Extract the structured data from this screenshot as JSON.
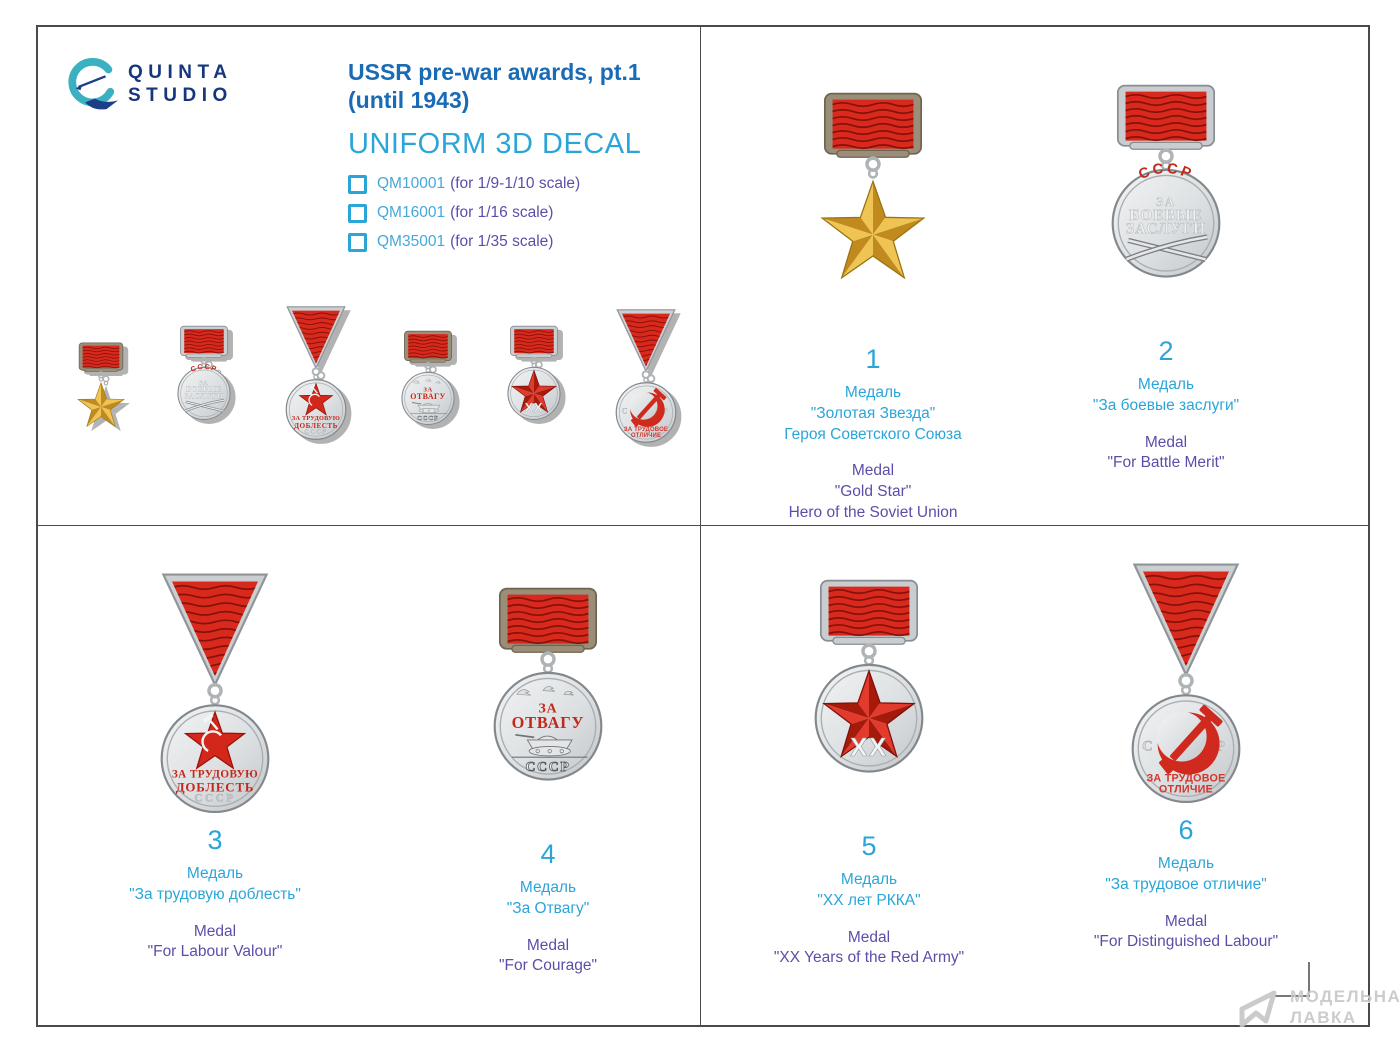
{
  "header": {
    "logo": {
      "brand_line1": "QUINTA",
      "brand_line2": "STUDIO"
    },
    "title_line1": "USSR pre-war awards, pt.1",
    "title_line2": "(until 1943)",
    "subtitle": "UNIFORM 3D DECAL",
    "variants": [
      {
        "code": "QM10001",
        "scale_note": "(for 1/9-1/10 scale)"
      },
      {
        "code": "QM16001",
        "scale_note": "(for 1/16 scale)"
      },
      {
        "code": "QM35001",
        "scale_note": "(for 1/35 scale)"
      }
    ]
  },
  "strip": {
    "medals": [
      "gold-star",
      "battle-merit",
      "labour-valour",
      "courage",
      "rkka-20",
      "labour-distinction"
    ]
  },
  "awards": [
    {
      "number": "1",
      "type": "gold-star",
      "ru": [
        "Медаль",
        "\"Золотая Звезда\"",
        "Героя Советского Союза"
      ],
      "en": [
        "Medal",
        "\"Gold Star\"",
        "Hero of the Soviet Union"
      ]
    },
    {
      "number": "2",
      "type": "battle-merit",
      "ru": [
        "Медаль",
        "\"За боевые заслуги\""
      ],
      "en": [
        "Medal",
        "\"For Battle Merit\""
      ]
    },
    {
      "number": "3",
      "type": "labour-valour",
      "ru": [
        "Медаль",
        "\"За трудовую доблесть\""
      ],
      "en": [
        "Medal",
        "\"For Labour Valour\""
      ]
    },
    {
      "number": "4",
      "type": "courage",
      "ru": [
        "Медаль",
        "\"За Отвагу\""
      ],
      "en": [
        "Medal",
        "\"For Courage\""
      ]
    },
    {
      "number": "5",
      "type": "rkka-20",
      "ru": [
        "Медаль",
        "\"XX лет РККА\""
      ],
      "en": [
        "Medal",
        "\"XX Years of the Red Army\""
      ]
    },
    {
      "number": "6",
      "type": "labour-distinction",
      "ru": [
        "Медаль",
        "\"За трудовое отличие\""
      ],
      "en": [
        "Medal",
        "\"For Distinguished Labour\""
      ]
    }
  ],
  "medal_art": {
    "battle_merit": {
      "top": "СССР",
      "line1": "ЗА",
      "line2": "БОЕВЫЕ",
      "line3": "ЗАСЛУГИ"
    },
    "labour_valour": {
      "line1": "ЗА ТРУДОВУЮ",
      "line2": "ДОБЛЕСТЬ",
      "line3": "СССР"
    },
    "courage": {
      "line1": "ЗА",
      "line2": "ОТВАГУ",
      "line3": "СССР"
    },
    "rkka": {
      "label": "XX"
    },
    "labour_distinction": {
      "letters": "С С С Р",
      "line1": "ЗА ТРУДОВОЕ",
      "line2": "ОТЛИЧИЕ"
    }
  },
  "watermark": {
    "lines": [
      "МОДЕЛЬНАЯ",
      "ЛАВКА"
    ]
  },
  "colors": {
    "accent_cyan": "#2BA5D8",
    "title_blue": "#1A6BB5",
    "caption_purple": "#5A4FA8",
    "logo_navy": "#16377E",
    "logo_teal": "#3AB0C0",
    "ribbon_red": "#D8291C",
    "ribbon_stripe": "#7A100A",
    "medal_silver": "#C9CDD0",
    "medal_gold": "#D9A62E",
    "mount_bronze": "#9B8E79"
  }
}
